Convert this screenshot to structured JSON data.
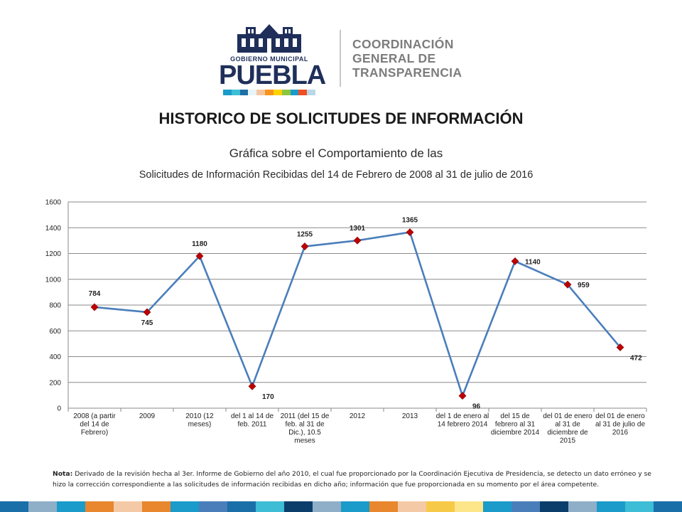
{
  "header": {
    "logo_small_text": "GOBIERNO MUNICIPAL",
    "logo_city": "PUEBLA",
    "org_lines": [
      "COORDINACIÓN",
      "GENERAL DE",
      "TRANSPARENCIA"
    ]
  },
  "page_title": "HISTORICO DE SOLICITUDES DE INFORMACIÓN",
  "chart_data": {
    "type": "line",
    "title": "Gráfica sobre el Comportamiento de las",
    "subtitle": "Solicitudes de Información Recibidas del 14 de Febrero de 2008 al 31 de julio de 2016",
    "xlabel": "",
    "ylabel": "",
    "ylim": [
      0,
      1600
    ],
    "yticks": [
      0,
      200,
      400,
      600,
      800,
      1000,
      1200,
      1400,
      1600
    ],
    "grid": true,
    "legend": "none",
    "categories": [
      [
        "2008 (a partir",
        "del 14 de",
        "Febrero)"
      ],
      [
        "2009"
      ],
      [
        "2010 (12",
        "meses)"
      ],
      [
        "del 1 al 14 de",
        "feb. 2011"
      ],
      [
        "2011 (del 15 de",
        "feb. al 31 de",
        "Dic.), 10.5",
        "meses"
      ],
      [
        "2012"
      ],
      [
        "2013"
      ],
      [
        "del 1 de enero al",
        "14 febrero 2014"
      ],
      [
        "del 15 de",
        "febrero al 31",
        "diciembre 2014"
      ],
      [
        "del 01 de enero",
        "al 31 de",
        "diciembre de",
        "2015"
      ],
      [
        "del 01 de enero",
        "al 31 de julio de",
        "2016"
      ]
    ],
    "series": [
      {
        "values": [
          784,
          745,
          1180,
          170,
          1255,
          1301,
          1365,
          96,
          1140,
          959,
          472
        ],
        "line_color": "#4a7ebb",
        "marker_color": "#c00000"
      }
    ]
  },
  "note": {
    "label": "Nota:",
    "text": "Derivado de la revisión hecha al 3er. Informe de Gobierno del año 2010, el cual fue proporcionado por la Coordinación Ejecutiva de Presidencia, se detecto un dato erróneo y se hizo la corrección correspondiente a las solicitudes de información recibidas en dicho año; información que fue proporcionada en su momento por el área competente."
  },
  "colors": {
    "logo_stripes": [
      "#1a9bc9",
      "#3dbdd6",
      "#1f6fa8",
      "#e8f4f8",
      "#f5c5a0",
      "#f7941d",
      "#ffd200",
      "#8cc63f",
      "#1a9bc9",
      "#f04e23",
      "#b8d8e8"
    ],
    "bottom_bar": [
      "#1a6fa8",
      "#8faec8",
      "#1a9bc9",
      "#e8872e",
      "#f4c9a6",
      "#e8872e",
      "#1a9bc9",
      "#4a7ebb",
      "#1a6fa8",
      "#3dbdd6",
      "#0b3e6a",
      "#8faec8",
      "#1a9bc9",
      "#e8872e",
      "#f4c9a6",
      "#f7c948",
      "#fde58a",
      "#1a9bc9",
      "#4a7ebb",
      "#0b3e6a",
      "#8faec8",
      "#1a9bc9",
      "#3dbdd6",
      "#1a6fa8"
    ]
  }
}
